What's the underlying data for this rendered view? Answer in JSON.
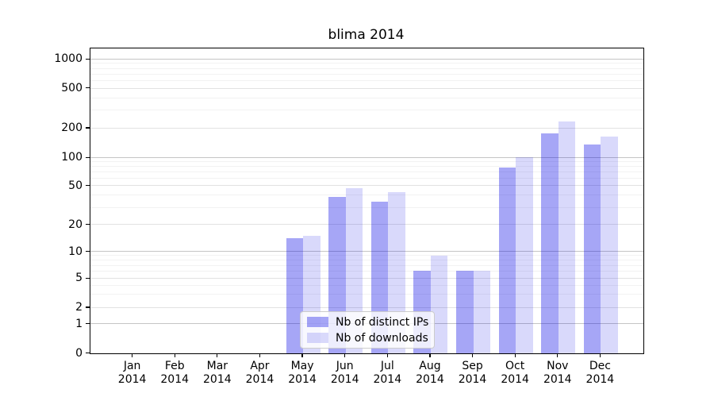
{
  "chart_data": {
    "type": "bar",
    "title": "blima 2014",
    "categories": [
      "Jan",
      "Feb",
      "Mar",
      "Apr",
      "May",
      "Jun",
      "Jul",
      "Aug",
      "Sep",
      "Oct",
      "Nov",
      "Dec"
    ],
    "category_year": "2014",
    "series": [
      {
        "name": "Nb of distinct IPs",
        "color": "rgba(0,0,230,0.35)",
        "values": [
          0,
          0,
          0,
          0,
          14,
          38,
          34,
          6,
          6,
          78,
          177,
          135
        ]
      },
      {
        "name": "Nb of downloads",
        "color": "rgba(0,0,230,0.15)",
        "values": [
          0,
          0,
          0,
          0,
          15,
          47,
          43,
          9,
          6,
          100,
          230,
          163
        ]
      }
    ],
    "y_ticks": [
      0,
      1,
      2,
      5,
      10,
      20,
      50,
      100,
      200,
      500,
      1000
    ],
    "ylim": [
      0,
      1280
    ],
    "yscale": "log-like",
    "grid": "both",
    "legend_position": "bottom-center"
  },
  "colors": {
    "background": "#ffffff",
    "axis_frame": "#000000",
    "grid_major": "#c5c5c5",
    "grid_sub": "#e2e2e2",
    "grid_minor": "#f2f2f2",
    "text": "#000000",
    "bar_distinct_ips": "rgba(0,0,230,0.35)",
    "bar_downloads": "rgba(0,0,230,0.15)"
  }
}
